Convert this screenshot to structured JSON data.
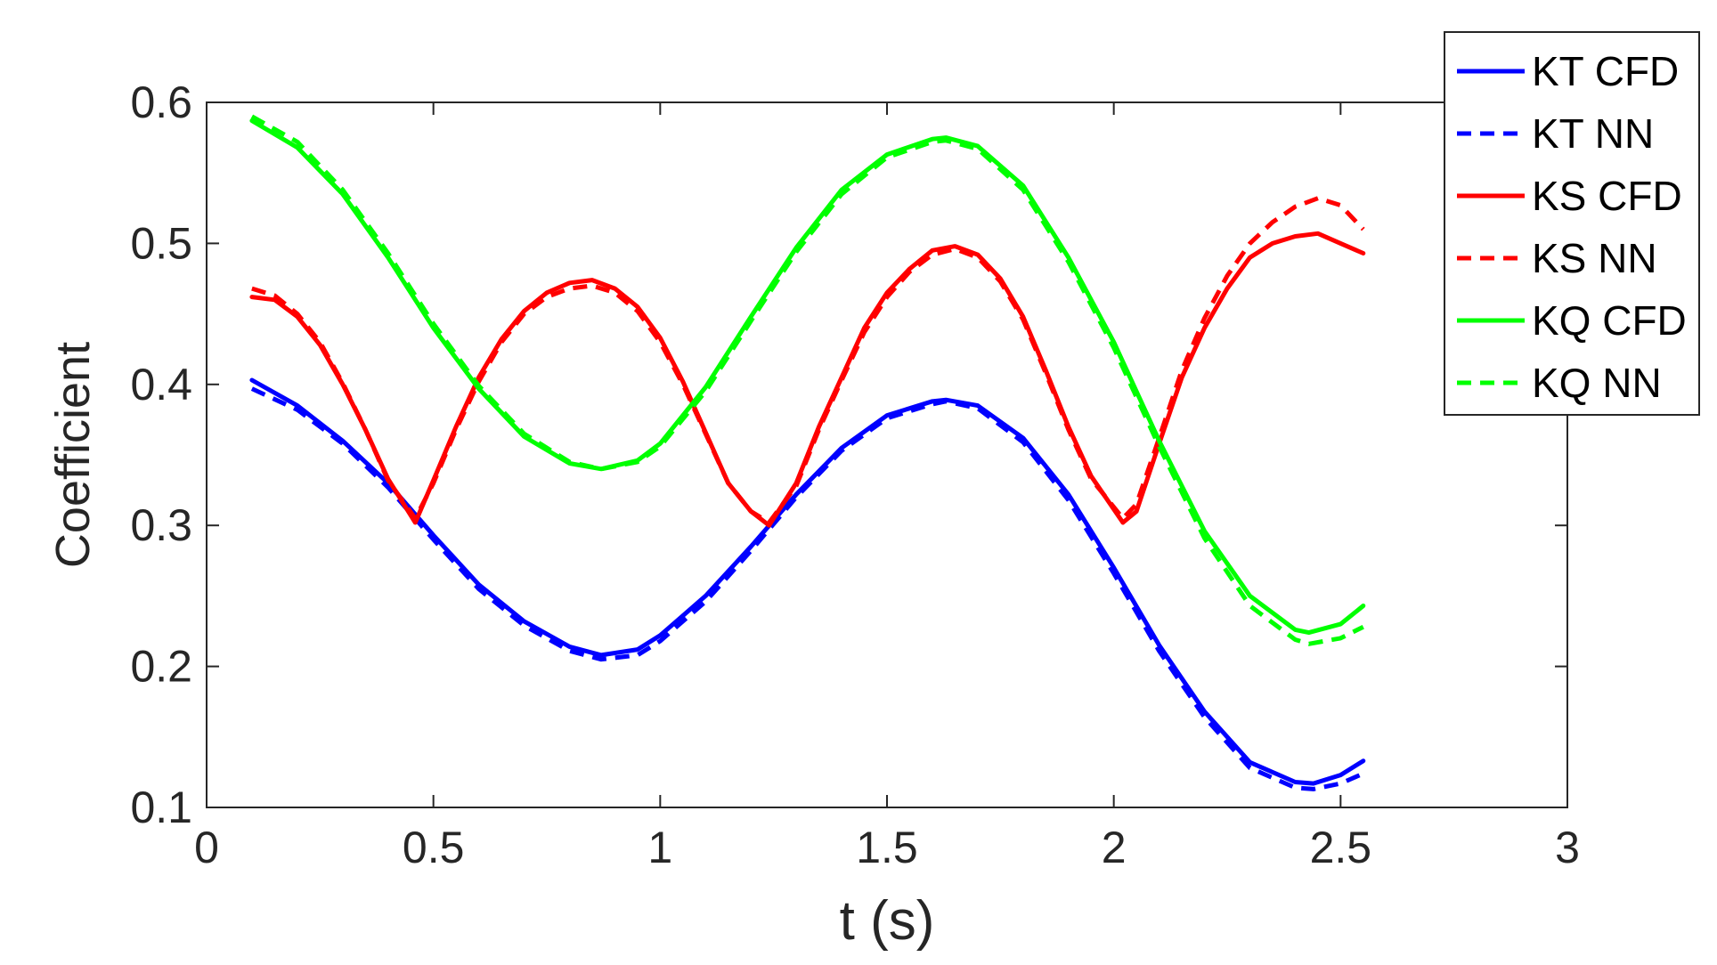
{
  "chart_data": {
    "type": "line",
    "xlabel": "t (s)",
    "ylabel": "Coefficient",
    "xlim": [
      0,
      3
    ],
    "ylim": [
      0.1,
      0.6
    ],
    "xticks": [
      0,
      0.5,
      1,
      1.5,
      2,
      2.5,
      3
    ],
    "xtick_labels": [
      "0",
      "0.5",
      "1",
      "1.5",
      "2",
      "2.5",
      "3"
    ],
    "yticks": [
      0.1,
      0.2,
      0.3,
      0.4,
      0.5,
      0.6
    ],
    "ytick_labels": [
      "0.1",
      "0.2",
      "0.3",
      "0.4",
      "0.5",
      "0.6"
    ],
    "grid": false,
    "legend_position": "top-right",
    "colors": {
      "KT": "#0000ff",
      "KS": "#ff0000",
      "KQ": "#00ff00",
      "axis": "#262626"
    },
    "series": [
      {
        "name": "KT CFD",
        "color": "#0000ff",
        "style": "solid",
        "x": [
          0.1,
          0.2,
          0.3,
          0.4,
          0.5,
          0.6,
          0.7,
          0.8,
          0.87,
          0.95,
          1.0,
          1.1,
          1.2,
          1.3,
          1.4,
          1.5,
          1.6,
          1.63,
          1.7,
          1.8,
          1.9,
          2.0,
          2.1,
          2.2,
          2.3,
          2.4,
          2.44,
          2.5,
          2.55
        ],
        "y": [
          0.403,
          0.385,
          0.36,
          0.33,
          0.293,
          0.258,
          0.232,
          0.214,
          0.208,
          0.212,
          0.222,
          0.25,
          0.285,
          0.322,
          0.355,
          0.378,
          0.388,
          0.389,
          0.385,
          0.362,
          0.322,
          0.27,
          0.215,
          0.168,
          0.132,
          0.118,
          0.117,
          0.123,
          0.133
        ]
      },
      {
        "name": "KT NN",
        "color": "#0000ff",
        "style": "dashed",
        "x": [
          0.1,
          0.2,
          0.3,
          0.4,
          0.5,
          0.6,
          0.7,
          0.8,
          0.87,
          0.95,
          1.0,
          1.1,
          1.2,
          1.3,
          1.4,
          1.5,
          1.6,
          1.63,
          1.7,
          1.8,
          1.9,
          2.0,
          2.1,
          2.2,
          2.3,
          2.4,
          2.44,
          2.5,
          2.55
        ],
        "y": [
          0.397,
          0.382,
          0.358,
          0.327,
          0.29,
          0.255,
          0.229,
          0.211,
          0.205,
          0.208,
          0.218,
          0.246,
          0.282,
          0.32,
          0.353,
          0.376,
          0.386,
          0.388,
          0.383,
          0.359,
          0.318,
          0.266,
          0.211,
          0.164,
          0.128,
          0.114,
          0.113,
          0.117,
          0.124
        ]
      },
      {
        "name": "KS CFD",
        "color": "#ff0000",
        "style": "solid",
        "x": [
          0.1,
          0.15,
          0.2,
          0.25,
          0.3,
          0.35,
          0.4,
          0.46,
          0.5,
          0.55,
          0.6,
          0.65,
          0.7,
          0.75,
          0.8,
          0.85,
          0.9,
          0.95,
          1.0,
          1.05,
          1.1,
          1.15,
          1.2,
          1.24,
          1.3,
          1.35,
          1.4,
          1.45,
          1.5,
          1.55,
          1.6,
          1.65,
          1.7,
          1.75,
          1.8,
          1.85,
          1.9,
          1.95,
          2.02,
          2.05,
          2.1,
          2.15,
          2.2,
          2.25,
          2.3,
          2.35,
          2.4,
          2.45,
          2.5,
          2.55
        ],
        "y": [
          0.462,
          0.46,
          0.448,
          0.428,
          0.4,
          0.368,
          0.333,
          0.302,
          0.332,
          0.37,
          0.405,
          0.432,
          0.452,
          0.465,
          0.472,
          0.474,
          0.468,
          0.455,
          0.433,
          0.402,
          0.366,
          0.33,
          0.31,
          0.3,
          0.33,
          0.37,
          0.405,
          0.44,
          0.465,
          0.482,
          0.495,
          0.498,
          0.492,
          0.475,
          0.448,
          0.41,
          0.37,
          0.335,
          0.302,
          0.31,
          0.358,
          0.405,
          0.44,
          0.468,
          0.49,
          0.5,
          0.505,
          0.507,
          0.5,
          0.493
        ]
      },
      {
        "name": "KS NN",
        "color": "#ff0000",
        "style": "dashed",
        "x": [
          0.1,
          0.15,
          0.2,
          0.25,
          0.3,
          0.35,
          0.4,
          0.46,
          0.5,
          0.55,
          0.6,
          0.65,
          0.7,
          0.75,
          0.8,
          0.85,
          0.9,
          0.95,
          1.0,
          1.05,
          1.1,
          1.15,
          1.2,
          1.24,
          1.3,
          1.35,
          1.4,
          1.45,
          1.5,
          1.55,
          1.6,
          1.65,
          1.7,
          1.75,
          1.8,
          1.85,
          1.9,
          1.95,
          2.02,
          2.05,
          2.1,
          2.15,
          2.2,
          2.25,
          2.3,
          2.35,
          2.4,
          2.45,
          2.5,
          2.55
        ],
        "y": [
          0.468,
          0.463,
          0.45,
          0.43,
          0.401,
          0.368,
          0.332,
          0.305,
          0.33,
          0.368,
          0.402,
          0.43,
          0.45,
          0.462,
          0.468,
          0.47,
          0.465,
          0.452,
          0.43,
          0.4,
          0.365,
          0.33,
          0.31,
          0.302,
          0.328,
          0.368,
          0.403,
          0.437,
          0.462,
          0.48,
          0.492,
          0.496,
          0.49,
          0.473,
          0.446,
          0.408,
          0.368,
          0.333,
          0.305,
          0.315,
          0.362,
          0.41,
          0.447,
          0.477,
          0.5,
          0.515,
          0.526,
          0.532,
          0.527,
          0.51
        ]
      },
      {
        "name": "KQ CFD",
        "color": "#00ff00",
        "style": "solid",
        "x": [
          0.1,
          0.2,
          0.3,
          0.4,
          0.5,
          0.6,
          0.7,
          0.8,
          0.87,
          0.95,
          1.0,
          1.1,
          1.2,
          1.3,
          1.4,
          1.5,
          1.6,
          1.63,
          1.7,
          1.8,
          1.9,
          2.0,
          2.1,
          2.2,
          2.3,
          2.4,
          2.43,
          2.5,
          2.55
        ],
        "y": [
          0.587,
          0.568,
          0.535,
          0.49,
          0.44,
          0.397,
          0.363,
          0.344,
          0.34,
          0.346,
          0.358,
          0.398,
          0.448,
          0.497,
          0.538,
          0.563,
          0.574,
          0.575,
          0.569,
          0.541,
          0.49,
          0.43,
          0.36,
          0.296,
          0.25,
          0.226,
          0.224,
          0.23,
          0.243
        ]
      },
      {
        "name": "KQ NN",
        "color": "#00ff00",
        "style": "dashed",
        "x": [
          0.1,
          0.2,
          0.3,
          0.4,
          0.5,
          0.6,
          0.7,
          0.8,
          0.87,
          0.95,
          1.0,
          1.1,
          1.2,
          1.3,
          1.4,
          1.5,
          1.6,
          1.63,
          1.7,
          1.8,
          1.9,
          2.0,
          2.1,
          2.2,
          2.3,
          2.4,
          2.43,
          2.5,
          2.55
        ],
        "y": [
          0.59,
          0.572,
          0.538,
          0.493,
          0.443,
          0.399,
          0.365,
          0.345,
          0.34,
          0.345,
          0.356,
          0.395,
          0.445,
          0.494,
          0.535,
          0.561,
          0.572,
          0.573,
          0.567,
          0.538,
          0.487,
          0.426,
          0.356,
          0.291,
          0.243,
          0.219,
          0.216,
          0.22,
          0.228
        ]
      }
    ]
  }
}
